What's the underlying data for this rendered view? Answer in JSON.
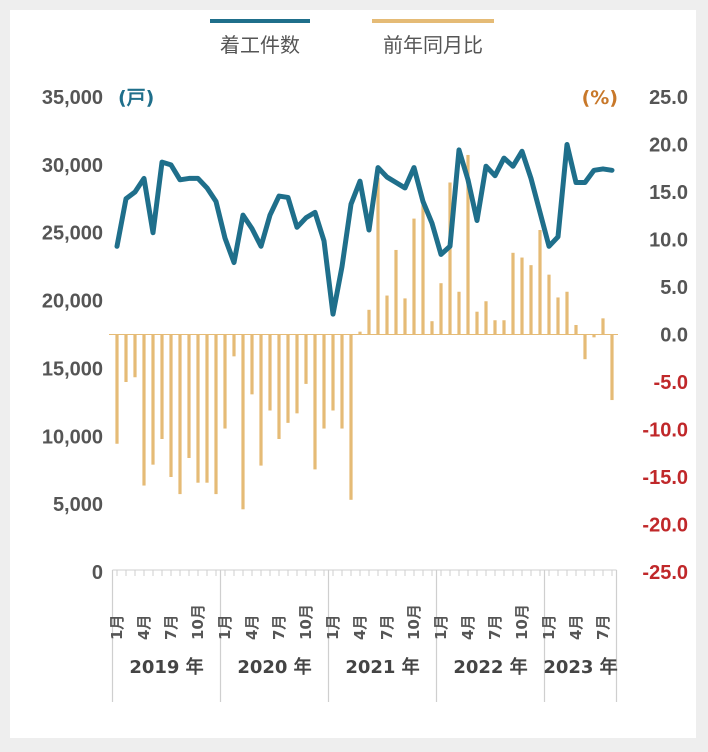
{
  "colors": {
    "line": "#1f6f8b",
    "bar": "#e5bb76",
    "axis_text": "#555555",
    "negative_text": "#c0282a",
    "left_unit": "#1f6f8b",
    "right_unit": "#c8782a",
    "grid": "#cfcfcf"
  },
  "legend": {
    "line_label": "着工件数",
    "bar_label": "前年同月比"
  },
  "units": {
    "left": "(戸)",
    "right": "(%)"
  },
  "chart_data": {
    "type": "line+bar",
    "title": "",
    "x": [
      "2019-01",
      "2019-02",
      "2019-03",
      "2019-04",
      "2019-05",
      "2019-06",
      "2019-07",
      "2019-08",
      "2019-09",
      "2019-10",
      "2019-11",
      "2019-12",
      "2020-01",
      "2020-02",
      "2020-03",
      "2020-04",
      "2020-05",
      "2020-06",
      "2020-07",
      "2020-08",
      "2020-09",
      "2020-10",
      "2020-11",
      "2020-12",
      "2021-01",
      "2021-02",
      "2021-03",
      "2021-04",
      "2021-05",
      "2021-06",
      "2021-07",
      "2021-08",
      "2021-09",
      "2021-10",
      "2021-11",
      "2021-12",
      "2022-01",
      "2022-02",
      "2022-03",
      "2022-04",
      "2022-05",
      "2022-06",
      "2022-07",
      "2022-08",
      "2022-09",
      "2022-10",
      "2022-11",
      "2022-12",
      "2023-01",
      "2023-02",
      "2023-03",
      "2023-04",
      "2023-05",
      "2023-06",
      "2023-07",
      "2023-08"
    ],
    "y_left": {
      "ticks": [
        "35,000",
        "30,000",
        "25,000",
        "20,000",
        "15,000",
        "10,000",
        "5,000",
        "0"
      ],
      "range": [
        0,
        35000
      ]
    },
    "y_right": {
      "ticks": [
        "25.0",
        "20.0",
        "15.0",
        "10.0",
        "5.0",
        "0.0",
        "-5.0",
        "-10.0",
        "-15.0",
        "-20.0",
        "-25.0"
      ],
      "range": [
        -25,
        25
      ]
    },
    "month_ticks": [
      "1月",
      "4月",
      "7月",
      "10月"
    ],
    "years": [
      "2019 年",
      "2020 年",
      "2021 年",
      "2022 年",
      "2023 年"
    ],
    "series": [
      {
        "name": "着工件数",
        "type": "line",
        "axis": "left",
        "values": [
          24000,
          27500,
          28000,
          29000,
          25000,
          30200,
          30000,
          28900,
          29000,
          29000,
          28300,
          27300,
          24600,
          22800,
          26300,
          25300,
          24000,
          26300,
          27700,
          27600,
          25400,
          26100,
          26500,
          24400,
          19000,
          22500,
          27100,
          28800,
          25200,
          29800,
          29100,
          28700,
          28300,
          29800,
          27300,
          25700,
          23400,
          24000,
          31100,
          28900,
          25900,
          29900,
          29200,
          30500,
          29900,
          31000,
          29000,
          26500,
          24000,
          24700,
          31500,
          28700,
          28700,
          29600,
          29700,
          29600
        ]
      },
      {
        "name": "前年同月比",
        "type": "bar",
        "axis": "right",
        "values": [
          -11.5,
          -5.0,
          -4.5,
          -15.9,
          -13.7,
          -11.0,
          -15.0,
          -16.8,
          -13.0,
          -15.6,
          -15.6,
          -16.8,
          -9.9,
          -2.3,
          -18.4,
          -6.3,
          -13.8,
          -8.0,
          -11.0,
          -9.3,
          -8.3,
          -5.2,
          -14.2,
          -9.9,
          -8.0,
          -9.9,
          -17.4,
          0.3,
          2.6,
          16.5,
          4.1,
          8.9,
          3.8,
          12.2,
          13.9,
          1.4,
          5.4,
          16.0,
          4.5,
          18.9,
          2.4,
          3.5,
          1.5,
          1.5,
          8.6,
          8.1,
          7.3,
          11.0,
          6.3,
          3.9,
          4.5,
          1.0,
          -2.6,
          -0.3,
          1.7,
          -6.9
        ]
      }
    ]
  }
}
